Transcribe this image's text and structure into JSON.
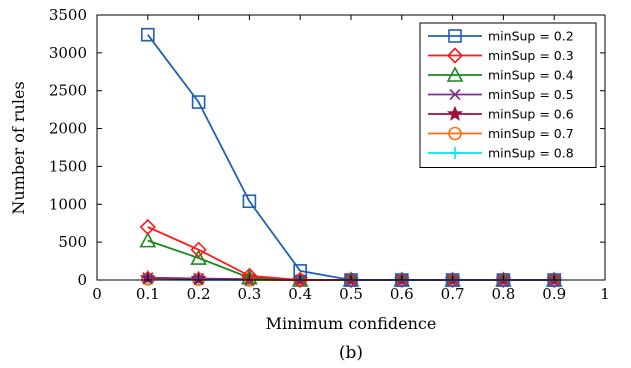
{
  "caption": "(b)",
  "chart_data": {
    "type": "line",
    "xlabel": "Minimum confidence",
    "ylabel": "Number of rules",
    "xlim": [
      0,
      1
    ],
    "ylim": [
      0,
      3500
    ],
    "x_ticks": [
      0,
      0.1,
      0.2,
      0.3,
      0.4,
      0.5,
      0.6,
      0.7,
      0.8,
      0.9,
      1
    ],
    "x_tick_labels": [
      "0",
      "0.1",
      "0.2",
      "0.3",
      "0.4",
      "0.5",
      "0.6",
      "0.7",
      "0.8",
      "0.9",
      "1"
    ],
    "y_ticks": [
      0,
      500,
      1000,
      1500,
      2000,
      2500,
      3000,
      3500
    ],
    "y_tick_labels": [
      "0",
      "500",
      "1000",
      "1500",
      "2000",
      "2500",
      "3000",
      "3500"
    ],
    "grid": false,
    "legend_position": "top-right",
    "x": [
      0.1,
      0.2,
      0.3,
      0.4,
      0.5,
      0.6,
      0.7,
      0.8,
      0.9
    ],
    "series": [
      {
        "name": "minSup = 0.2",
        "color": "#1f5fb4",
        "marker": "square",
        "values": [
          3240,
          2350,
          1040,
          120,
          0,
          0,
          0,
          0,
          0
        ]
      },
      {
        "name": "minSup = 0.3",
        "color": "#ff1a1a",
        "marker": "diamond",
        "values": [
          700,
          400,
          55,
          0,
          0,
          0,
          0,
          0,
          0
        ]
      },
      {
        "name": "minSup = 0.4",
        "color": "#1a8a1a",
        "marker": "triangle",
        "values": [
          520,
          290,
          30,
          0,
          0,
          0,
          0,
          0,
          0
        ]
      },
      {
        "name": "minSup = 0.5",
        "color": "#7b2d8e",
        "marker": "x",
        "values": [
          30,
          20,
          10,
          0,
          0,
          0,
          0,
          0,
          0
        ]
      },
      {
        "name": "minSup = 0.6",
        "color": "#a0103a",
        "marker": "star",
        "values": [
          25,
          15,
          5,
          0,
          0,
          0,
          0,
          0,
          0
        ]
      },
      {
        "name": "minSup = 0.7",
        "color": "#ff6a10",
        "marker": "circle",
        "values": [
          15,
          10,
          0,
          0,
          0,
          0,
          0,
          0,
          0
        ]
      },
      {
        "name": "minSup = 0.8",
        "color": "#00e5ee",
        "marker": "plus",
        "values": [
          5,
          0,
          0,
          0,
          0,
          0,
          0,
          0,
          0
        ]
      }
    ]
  }
}
